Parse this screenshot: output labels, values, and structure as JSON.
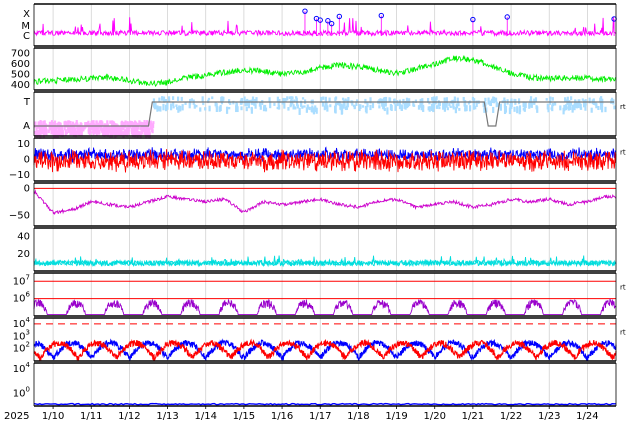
{
  "chart_data": {
    "type": "line",
    "x_axis": {
      "year_label": "2025",
      "ticks": [
        "1/10",
        "1/11",
        "1/12",
        "1/13",
        "1/14",
        "1/15",
        "1/16",
        "1/17",
        "1/18",
        "1/19",
        "1/20",
        "1/21",
        "1/22",
        "1/23",
        "1/24"
      ],
      "grid": true
    },
    "panels": [
      {
        "id": "flare-class",
        "type": "scatter",
        "y_ticks": [
          "X",
          "M",
          "C"
        ],
        "side_label": "",
        "series": [
          {
            "name": "",
            "color": "#ff00ff",
            "style": "line",
            "level": "C-to-M background"
          },
          {
            "name": "",
            "color": "#0000ff",
            "style": "circles",
            "x": [
              "1/16.6",
              "1/16.9",
              "1/17.0",
              "1/17.2",
              "1/17.3",
              "1/17.5",
              "1/18.6",
              "1/21.0",
              "1/21.9",
              "1/24.7"
            ]
          }
        ]
      },
      {
        "id": "solar-wind-speed",
        "type": "line",
        "y_ticks": [
          "400",
          "500",
          "600",
          "700"
        ],
        "ylim": [
          350,
          750
        ],
        "side_label": "",
        "series": [
          {
            "name": "",
            "color": "#00ee00",
            "x": [
              "1/9.5",
              "1/10",
              "1/10.5",
              "1/11",
              "1/11.5",
              "1/12",
              "1/12.5",
              "1/13",
              "1/13.5",
              "1/14",
              "1/14.5",
              "1/15",
              "1/15.5",
              "1/16",
              "1/16.5",
              "1/17",
              "1/17.5",
              "1/18",
              "1/18.5",
              "1/19",
              "1/19.5",
              "1/20",
              "1/20.5",
              "1/21",
              "1/21.5",
              "1/22",
              "1/22.5",
              "1/23",
              "1/23.5",
              "1/24",
              "1/24.5"
            ],
            "y": [
              430,
              440,
              450,
              460,
              470,
              440,
              410,
              420,
              470,
              490,
              520,
              540,
              530,
              500,
              520,
              560,
              590,
              570,
              540,
              510,
              550,
              600,
              650,
              640,
              580,
              510,
              470,
              460,
              470,
              460,
              450
            ]
          }
        ]
      },
      {
        "id": "imf-polarity",
        "type": "line",
        "y_ticks": [
          "T",
          "A"
        ],
        "side_label": "rt",
        "series": [
          {
            "name": "",
            "color": "#ffaaff",
            "level": "A",
            "from": "1/9.5",
            "to": "1/12.6"
          },
          {
            "name": "",
            "color": "#aaddff",
            "level": "T",
            "from": "1/12.6",
            "to": "1/24.7"
          },
          {
            "name": "",
            "color": "#777777",
            "style": "step",
            "x": [
              "1/9.5",
              "1/12.5",
              "1/12.6",
              "1/21.3",
              "1/21.4",
              "1/21.6",
              "1/21.7",
              "1/24.7"
            ],
            "y": [
              "A",
              "A",
              "T",
              "T",
              "A",
              "A",
              "T",
              "T"
            ]
          }
        ]
      },
      {
        "id": "imf-bz",
        "type": "line",
        "y_ticks": [
          "-10",
          "0",
          "10"
        ],
        "ylim": [
          -14,
          14
        ],
        "side_label": "rt",
        "series": [
          {
            "name": "",
            "color": "#0000ff",
            "baseline": 3,
            "amplitude": 5
          },
          {
            "name": "",
            "color": "#ff0000",
            "baseline": -1,
            "amplitude": 8
          }
        ]
      },
      {
        "id": "dst-index",
        "type": "line",
        "y_ticks": [
          "-50",
          "0"
        ],
        "ylim": [
          -70,
          10
        ],
        "reference_line": {
          "y": 0,
          "color": "#ff0000"
        },
        "side_label": "",
        "series": [
          {
            "name": "",
            "color": "#cc00cc",
            "x": [
              "1/9.5",
              "1/10",
              "1/10.5",
              "1/11",
              "1/11.5",
              "1/12",
              "1/12.5",
              "1/13",
              "1/13.5",
              "1/14",
              "1/14.5",
              "1/15",
              "1/15.5",
              "1/16",
              "1/16.5",
              "1/17",
              "1/17.5",
              "1/18",
              "1/18.5",
              "1/19",
              "1/19.5",
              "1/20",
              "1/20.5",
              "1/21",
              "1/21.5",
              "1/22",
              "1/22.5",
              "1/23",
              "1/23.5",
              "1/24",
              "1/24.5"
            ],
            "y": [
              -5,
              -45,
              -40,
              -25,
              -30,
              -35,
              -25,
              -15,
              -20,
              -25,
              -20,
              -45,
              -25,
              -30,
              -25,
              -20,
              -30,
              -35,
              -25,
              -20,
              -35,
              -30,
              -25,
              -35,
              -30,
              -20,
              -25,
              -20,
              -30,
              -25,
              -15
            ]
          }
        ]
      },
      {
        "id": "kp-index",
        "type": "line",
        "y_ticks": [
          "20",
          "40"
        ],
        "ylim": [
          0,
          50
        ],
        "side_label": "",
        "series": [
          {
            "name": "",
            "color": "#00dddd",
            "baseline": 8,
            "amplitude": 6
          }
        ]
      },
      {
        "id": "electron-flux",
        "type": "line",
        "y_ticks": [
          "10^6",
          "10^7"
        ],
        "yscale": "log",
        "ylim": [
          100000,
          30000000
        ],
        "reference_lines": [
          {
            "y": 1000000,
            "color": "#ff0000"
          },
          {
            "y": 10000000,
            "color": "#ff0000"
          }
        ],
        "side_label": "rt",
        "series": [
          {
            "name": "",
            "color": "#9900cc",
            "style": "daily bursts",
            "peak": 800000
          }
        ]
      },
      {
        "id": "proton-flux",
        "type": "line",
        "y_ticks": [
          "10^2",
          "10^3",
          "10^4"
        ],
        "yscale": "log",
        "ylim": [
          10,
          30000
        ],
        "reference_line": {
          "y": 10000,
          "color": "#ff0000",
          "style": "dashed"
        },
        "side_label": "rt",
        "series": [
          {
            "name": "",
            "color": "#0000ff",
            "style": "daily arches"
          },
          {
            "name": "",
            "color": "#ff0000",
            "style": "daily arches"
          }
        ]
      },
      {
        "id": "ion-flux",
        "type": "line",
        "y_ticks": [
          "10^0",
          "10^4"
        ],
        "yscale": "log",
        "ylim": [
          0.01,
          100000
        ],
        "side_label": "",
        "series": [
          {
            "name": "",
            "color": "#0000ff",
            "level": 0.02
          }
        ]
      }
    ]
  }
}
